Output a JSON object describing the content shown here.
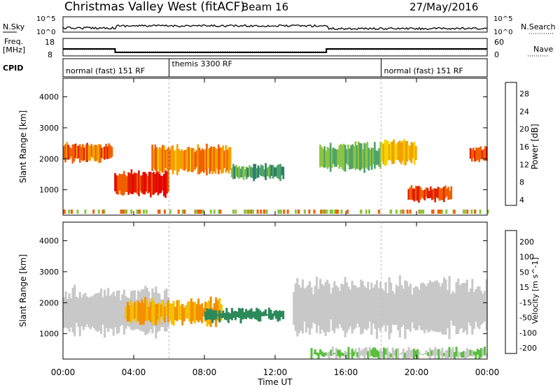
{
  "header": {
    "title": "Christmas Valley West (fitACF)",
    "beam": "Beam 16",
    "date": "27/May/2016"
  },
  "top_panels": {
    "nsky_label": "N.Sky",
    "nsky_ticks": [
      "10^5",
      "10^0"
    ],
    "nsearch_label": "N.Search",
    "nsearch_ticks": [
      "10^5",
      "10^0"
    ],
    "freq_label_line1": "Freq.",
    "freq_label_line2": "[MHz]",
    "freq_ticks": [
      "18",
      "8"
    ],
    "nave_label": "Nave",
    "nave_ticks": [
      "60",
      "0"
    ],
    "cpid_label": "CPID",
    "cpid_segments": [
      {
        "label": "normal (fast) 151 RF",
        "start_h": 0,
        "end_h": 6
      },
      {
        "label": "themis 3300 RF",
        "start_h": 6,
        "end_h": 18
      },
      {
        "label": "normal (fast) 151 RF",
        "start_h": 18,
        "end_h": 24
      }
    ]
  },
  "chart_data": [
    {
      "type": "heatmap",
      "panel": "power",
      "xlabel": "",
      "ylabel": "Slant Range [km]",
      "ylim": [
        180,
        4600
      ],
      "xlim_hours": [
        0,
        24
      ],
      "y_ticks": [
        "4000",
        "3000",
        "2000",
        "1000"
      ],
      "colorbar": {
        "label": "Power [dB]",
        "ticks": [
          "28",
          "24",
          "20",
          "16",
          "12",
          "8",
          "4"
        ],
        "colors": [
          "#1428ff",
          "#1e4f9b",
          "#2e7e6a",
          "#4fa36a",
          "#8cc640",
          "#f4d400",
          "#f4a000",
          "#f06000",
          "#e01e00",
          "#e80000"
        ]
      },
      "echo_regions": [
        {
          "t": [
            0.0,
            2.8
          ],
          "range": [
            1900,
            2500
          ],
          "dB": 24
        },
        {
          "t": [
            2.9,
            6.0
          ],
          "range": [
            800,
            1600
          ],
          "dB": 28
        },
        {
          "t": [
            5.0,
            9.5
          ],
          "range": [
            1500,
            2450
          ],
          "dB": 22
        },
        {
          "t": [
            9.5,
            12.5
          ],
          "range": [
            1350,
            1800
          ],
          "dB": 12
        },
        {
          "t": [
            14.5,
            18.0
          ],
          "range": [
            1600,
            2500
          ],
          "dB": 14
        },
        {
          "t": [
            18.0,
            20.0
          ],
          "range": [
            1800,
            2600
          ],
          "dB": 20
        },
        {
          "t": [
            19.5,
            22.0
          ],
          "range": [
            650,
            1100
          ],
          "dB": 26
        },
        {
          "t": [
            23.0,
            24.0
          ],
          "range": [
            1900,
            2400
          ],
          "dB": 26
        }
      ]
    },
    {
      "type": "heatmap",
      "panel": "velocity",
      "xlabel": "Time UT",
      "ylabel": "Slant Range [km]",
      "ylim": [
        180,
        4600
      ],
      "xlim_hours": [
        0,
        24
      ],
      "x_ticks": [
        "00:00",
        "04:00",
        "08:00",
        "12:00",
        "16:00",
        "20:00",
        "00:00"
      ],
      "y_ticks": [
        "4000",
        "3000",
        "2000",
        "1000"
      ],
      "colorbar": {
        "label": "Velocity [m s^-1]",
        "ticks": [
          "200",
          "100",
          "50",
          "15",
          "-15",
          "-50",
          "-100",
          "-200"
        ],
        "colors": [
          "#1428d0",
          "#1e5a9c",
          "#2c8a5a",
          "#58c03a",
          "#c8c8c8",
          "#f4c000",
          "#f49000",
          "#f05000",
          "#e00000"
        ]
      },
      "echo_regions": [
        {
          "t": [
            0.0,
            6.0
          ],
          "range": [
            900,
            2500
          ],
          "v": 0
        },
        {
          "t": [
            3.5,
            9.0
          ],
          "range": [
            1300,
            2100
          ],
          "v": -50
        },
        {
          "t": [
            8.0,
            12.5
          ],
          "range": [
            1400,
            1800
          ],
          "v": 50
        },
        {
          "t": [
            13.0,
            24.0
          ],
          "range": [
            900,
            2800
          ],
          "v": 0
        },
        {
          "t": [
            14.0,
            24.0
          ],
          "range": [
            200,
            500
          ],
          "v": 15
        }
      ]
    }
  ]
}
